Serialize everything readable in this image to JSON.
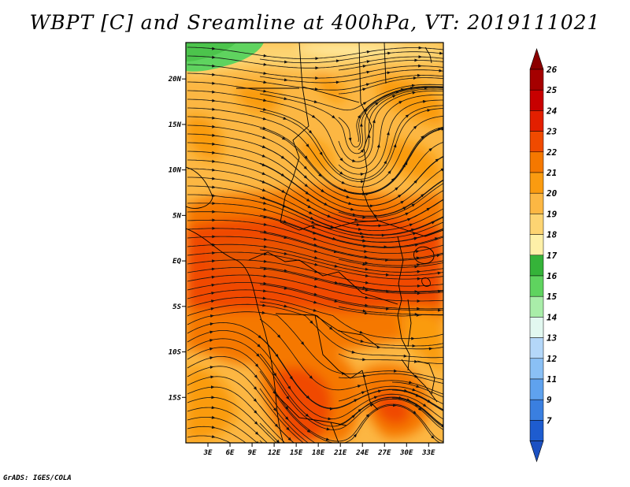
{
  "title": "WBPT [C] and Sreamline at 400hPa, VT: 2019111021",
  "credit": "GrADS: IGES/COLA",
  "map": {
    "variable": "Wet-bulb potential temperature (C) with 400hPa streamlines",
    "lat_ticks": [
      "20N",
      "15N",
      "10N",
      "5N",
      "EQ",
      "5S",
      "10S",
      "15S"
    ],
    "lon_ticks": [
      "3E",
      "6E",
      "9E",
      "12E",
      "15E",
      "18E",
      "21E",
      "24E",
      "27E",
      "30E",
      "33E"
    ],
    "lon_range": [
      0,
      35
    ],
    "lat_range": [
      -20,
      24
    ]
  },
  "colorbar": {
    "levels": [
      "26",
      "25",
      "24",
      "23",
      "22",
      "21",
      "20",
      "19",
      "18",
      "17",
      "16",
      "15",
      "14",
      "13",
      "12",
      "11",
      "9",
      "7"
    ],
    "colors": [
      "#a50000",
      "#c80000",
      "#e31f00",
      "#f04a00",
      "#f57800",
      "#fa9b10",
      "#fcb743",
      "#fdd472",
      "#fef0a8",
      "#35b339",
      "#5fd35f",
      "#a9eda9",
      "#e2f8f0",
      "#b4d7f9",
      "#8ac0f5",
      "#5fa2ee",
      "#3a7fe0",
      "#1e5ccf"
    ],
    "top_arrow_color": "#8b0000",
    "bottom_arrow_color": "#1c51c2"
  }
}
